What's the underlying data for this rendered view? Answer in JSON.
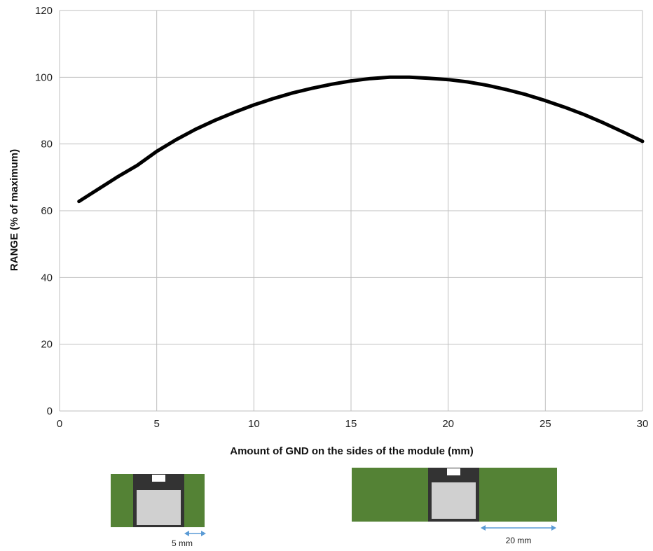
{
  "chart_data": {
    "type": "line",
    "title": "",
    "xlabel": "Amount of GND on the sides of the module (mm)",
    "ylabel": "RANGE (% of maximum)",
    "xlim": [
      0,
      30
    ],
    "ylim": [
      0,
      120
    ],
    "xticks": [
      0,
      5,
      10,
      15,
      20,
      25,
      30
    ],
    "yticks": [
      0,
      20,
      40,
      60,
      80,
      100,
      120
    ],
    "grid": true,
    "line_color": "#000000",
    "series": [
      {
        "x": [
          1,
          2,
          3,
          4,
          5,
          6,
          7,
          8,
          9,
          10,
          11,
          12,
          13,
          14,
          15,
          16,
          17,
          18,
          19,
          20,
          21,
          22,
          23,
          24,
          25,
          26,
          27,
          28,
          29,
          30
        ],
        "y": [
          62.8,
          66.5,
          70.2,
          73.6,
          77.8,
          81.3,
          84.4,
          87.1,
          89.5,
          91.7,
          93.6,
          95.3,
          96.7,
          97.9,
          98.9,
          99.6,
          100.0,
          100.0,
          99.7,
          99.3,
          98.6,
          97.6,
          96.3,
          94.8,
          93.0,
          91.0,
          88.8,
          86.3,
          83.6,
          80.8
        ]
      }
    ]
  },
  "illustrations": {
    "small_module_dimension": "5 mm",
    "large_module_dimension": "20 mm",
    "board_color": "#548235",
    "module_color": "#333333",
    "shield_color": "#d0d0d0",
    "arrow_color": "#5b9bd5"
  }
}
